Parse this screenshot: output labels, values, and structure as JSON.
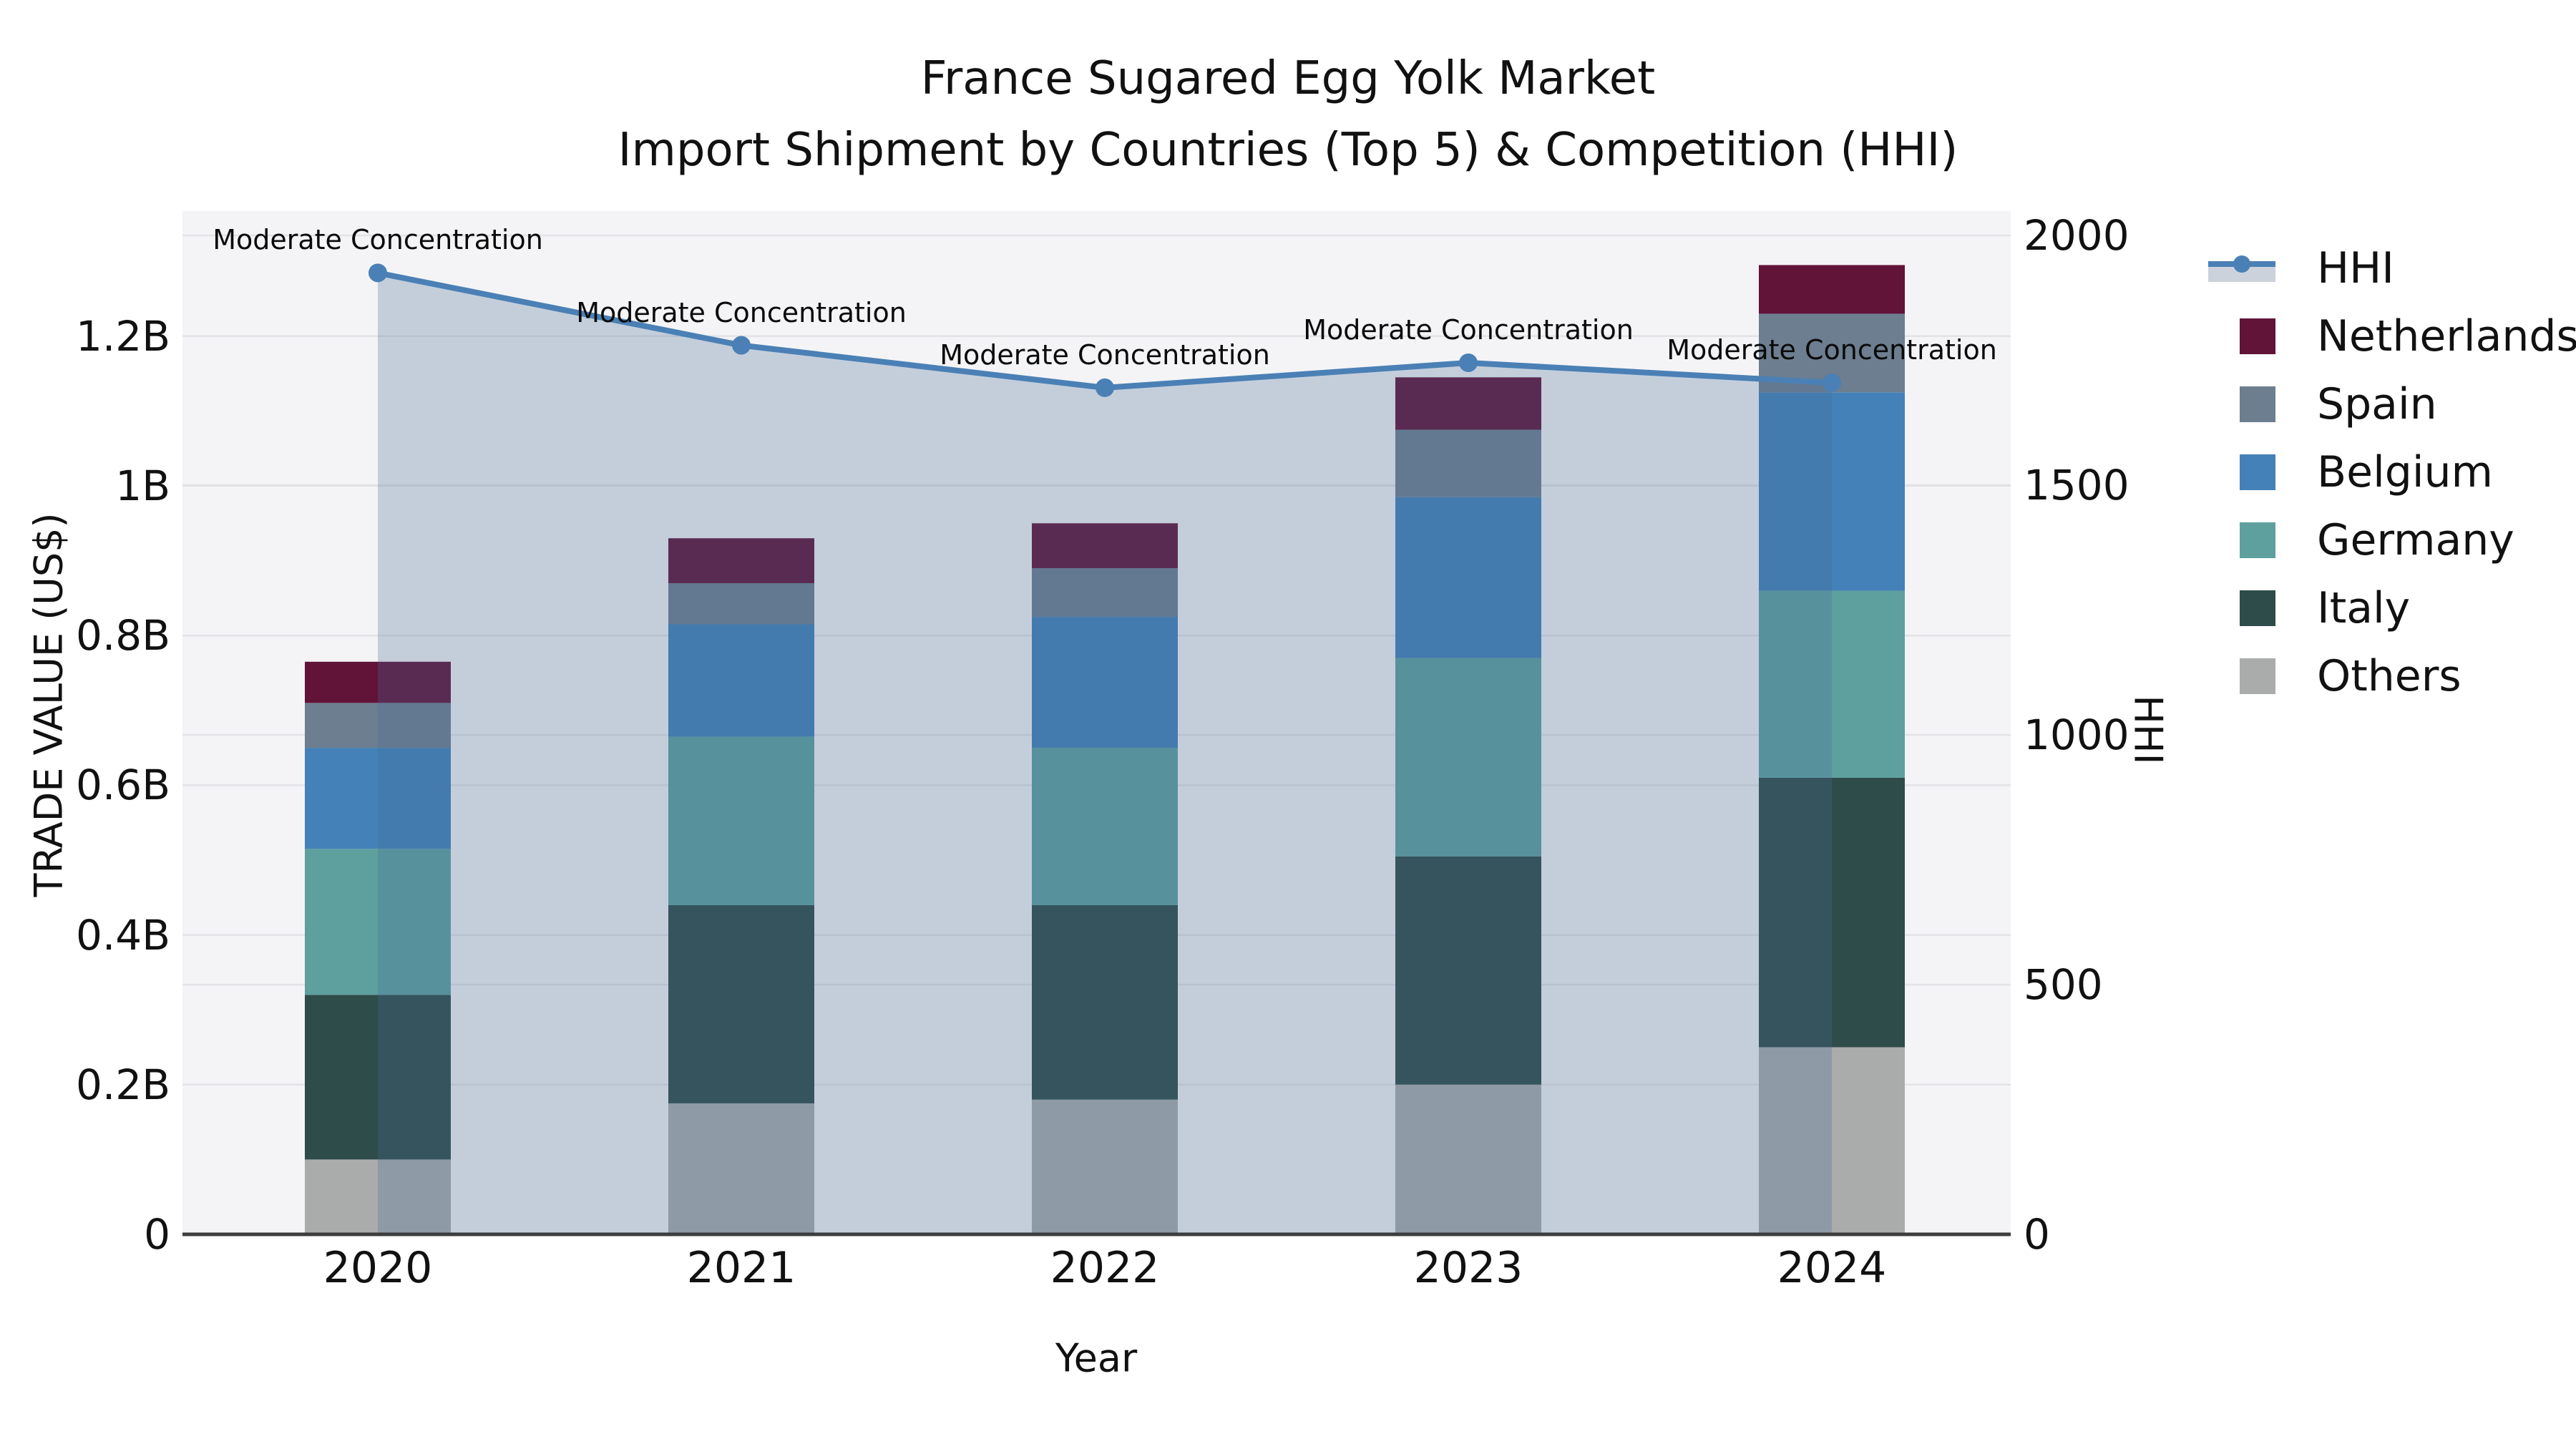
{
  "title": {
    "line1": "France Sugared Egg Yolk Market",
    "line2": "Import Shipment by Countries (Top 5) & Competition (HHI)"
  },
  "axes": {
    "y_left": {
      "title": "TRADE VALUE (US$)",
      "tick_labels": [
        "0",
        "0.2B",
        "0.4B",
        "0.6B",
        "0.8B",
        "1B",
        "1.2B"
      ],
      "tick_values": [
        0,
        0.2,
        0.4,
        0.6,
        0.8,
        1.0,
        1.2
      ]
    },
    "y_right": {
      "title": "HHI",
      "tick_labels": [
        "0",
        "500",
        "1000",
        "1500",
        "2000"
      ],
      "tick_values": [
        0,
        500,
        1000,
        1500,
        2000
      ]
    },
    "x": {
      "title": "Year",
      "tick_labels": [
        "2020",
        "2021",
        "2022",
        "2023",
        "2024"
      ]
    }
  },
  "legend": {
    "items": [
      {
        "label": "HHI",
        "type": "line",
        "color": "#4a80b5"
      },
      {
        "label": "Netherlands",
        "type": "square",
        "color": "#611338"
      },
      {
        "label": "Spain",
        "type": "square",
        "color": "#6c7e8f"
      },
      {
        "label": "Belgium",
        "type": "square",
        "color": "#4381b8"
      },
      {
        "label": "Germany",
        "type": "square",
        "color": "#5da09e"
      },
      {
        "label": "Italy",
        "type": "square",
        "color": "#2e4c49"
      },
      {
        "label": "Others",
        "type": "square",
        "color": "#aaacab"
      }
    ]
  },
  "chart_data": {
    "type": "bar",
    "subtype": "stacked-bars-with-line-overlay",
    "title": "France Sugared Egg Yolk Market — Import Shipment by Countries (Top 5) & Competition (HHI)",
    "categories": [
      "2020",
      "2021",
      "2022",
      "2023",
      "2024"
    ],
    "unit": "billion US$",
    "xlabel": "Year",
    "ylabel": "TRADE VALUE (US$)",
    "y2label": "HHI",
    "ylim": [
      0,
      1.37
    ],
    "y2lim": [
      0,
      2050
    ],
    "grid": true,
    "legend_position": "upper-right-outside",
    "series": [
      {
        "name": "Others",
        "color": "#aaacab",
        "values": [
          0.1,
          0.175,
          0.18,
          0.2,
          0.25
        ]
      },
      {
        "name": "Italy",
        "color": "#2e4c49",
        "values": [
          0.22,
          0.265,
          0.26,
          0.305,
          0.36
        ]
      },
      {
        "name": "Germany",
        "color": "#5da09e",
        "values": [
          0.195,
          0.225,
          0.21,
          0.265,
          0.25
        ]
      },
      {
        "name": "Belgium",
        "color": "#4381b8",
        "values": [
          0.135,
          0.15,
          0.175,
          0.215,
          0.265
        ]
      },
      {
        "name": "Spain",
        "color": "#6c7e8f",
        "values": [
          0.06,
          0.055,
          0.065,
          0.09,
          0.105
        ]
      },
      {
        "name": "Netherlands",
        "color": "#611338",
        "values": [
          0.055,
          0.06,
          0.06,
          0.07,
          0.065
        ]
      }
    ],
    "bar_totals": [
      0.765,
      0.93,
      0.95,
      1.145,
      1.295
    ],
    "line": {
      "name": "HHI",
      "axis": "right",
      "color": "#4a80b5",
      "fill_color": "rgba(73,106,152,0.28)",
      "values": [
        1925,
        1780,
        1695,
        1745,
        1705
      ]
    },
    "annotations": [
      {
        "text": "Moderate Concentration",
        "category": "2020"
      },
      {
        "text": "Moderate Concentration",
        "category": "2021"
      },
      {
        "text": "Moderate Concentration",
        "category": "2022"
      },
      {
        "text": "Moderate Concentration",
        "category": "2023"
      },
      {
        "text": "Moderate Concentration",
        "category": "2024"
      }
    ],
    "plot_bg": "#f4f4f6",
    "grid_color": "#e3e3e7",
    "axis_line_color": "#3d3d3d"
  }
}
